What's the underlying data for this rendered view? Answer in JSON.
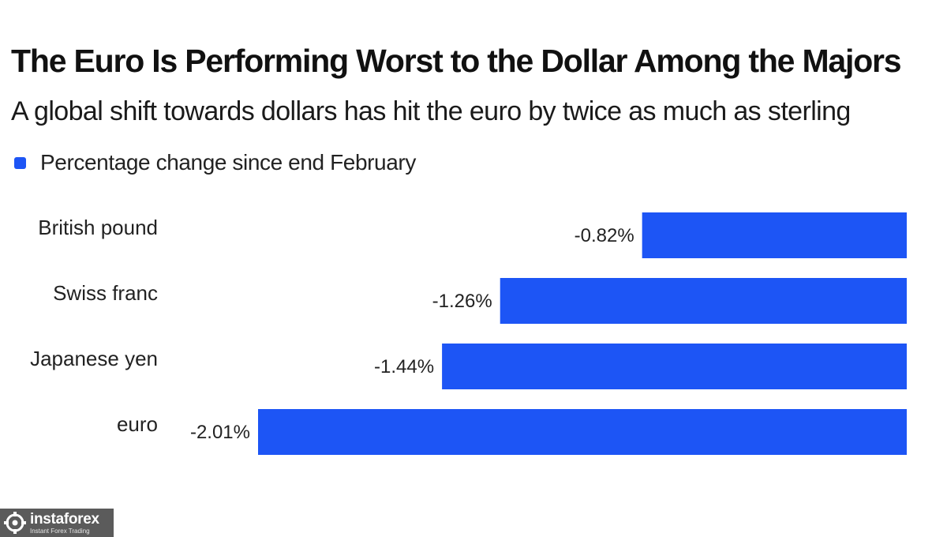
{
  "header": {
    "title": "The Euro Is Performing Worst to the Dollar Among the Majors",
    "subtitle": "A global shift towards dollars has hit the euro by twice as much as sterling"
  },
  "legend": {
    "label": "Percentage change since end February",
    "color": "#1d55f5"
  },
  "chart_data": {
    "type": "bar",
    "orientation": "horizontal",
    "categories": [
      "British pound",
      "Swiss franc",
      "Japanese yen",
      "euro"
    ],
    "series": [
      {
        "name": "Percentage change since end February",
        "values": [
          -0.82,
          -1.26,
          -1.44,
          -2.01
        ],
        "labels": [
          "-0.82%",
          "-1.26%",
          "-1.44%",
          "-2.01%"
        ]
      }
    ],
    "xlim": [
      -2.01,
      0
    ],
    "grid": false,
    "legend_position": "top-left",
    "bar_color": "#1d55f5"
  },
  "watermark": {
    "name": "instaforex",
    "tagline": "Instant Forex Trading",
    "icon": "gear-logo-icon"
  }
}
